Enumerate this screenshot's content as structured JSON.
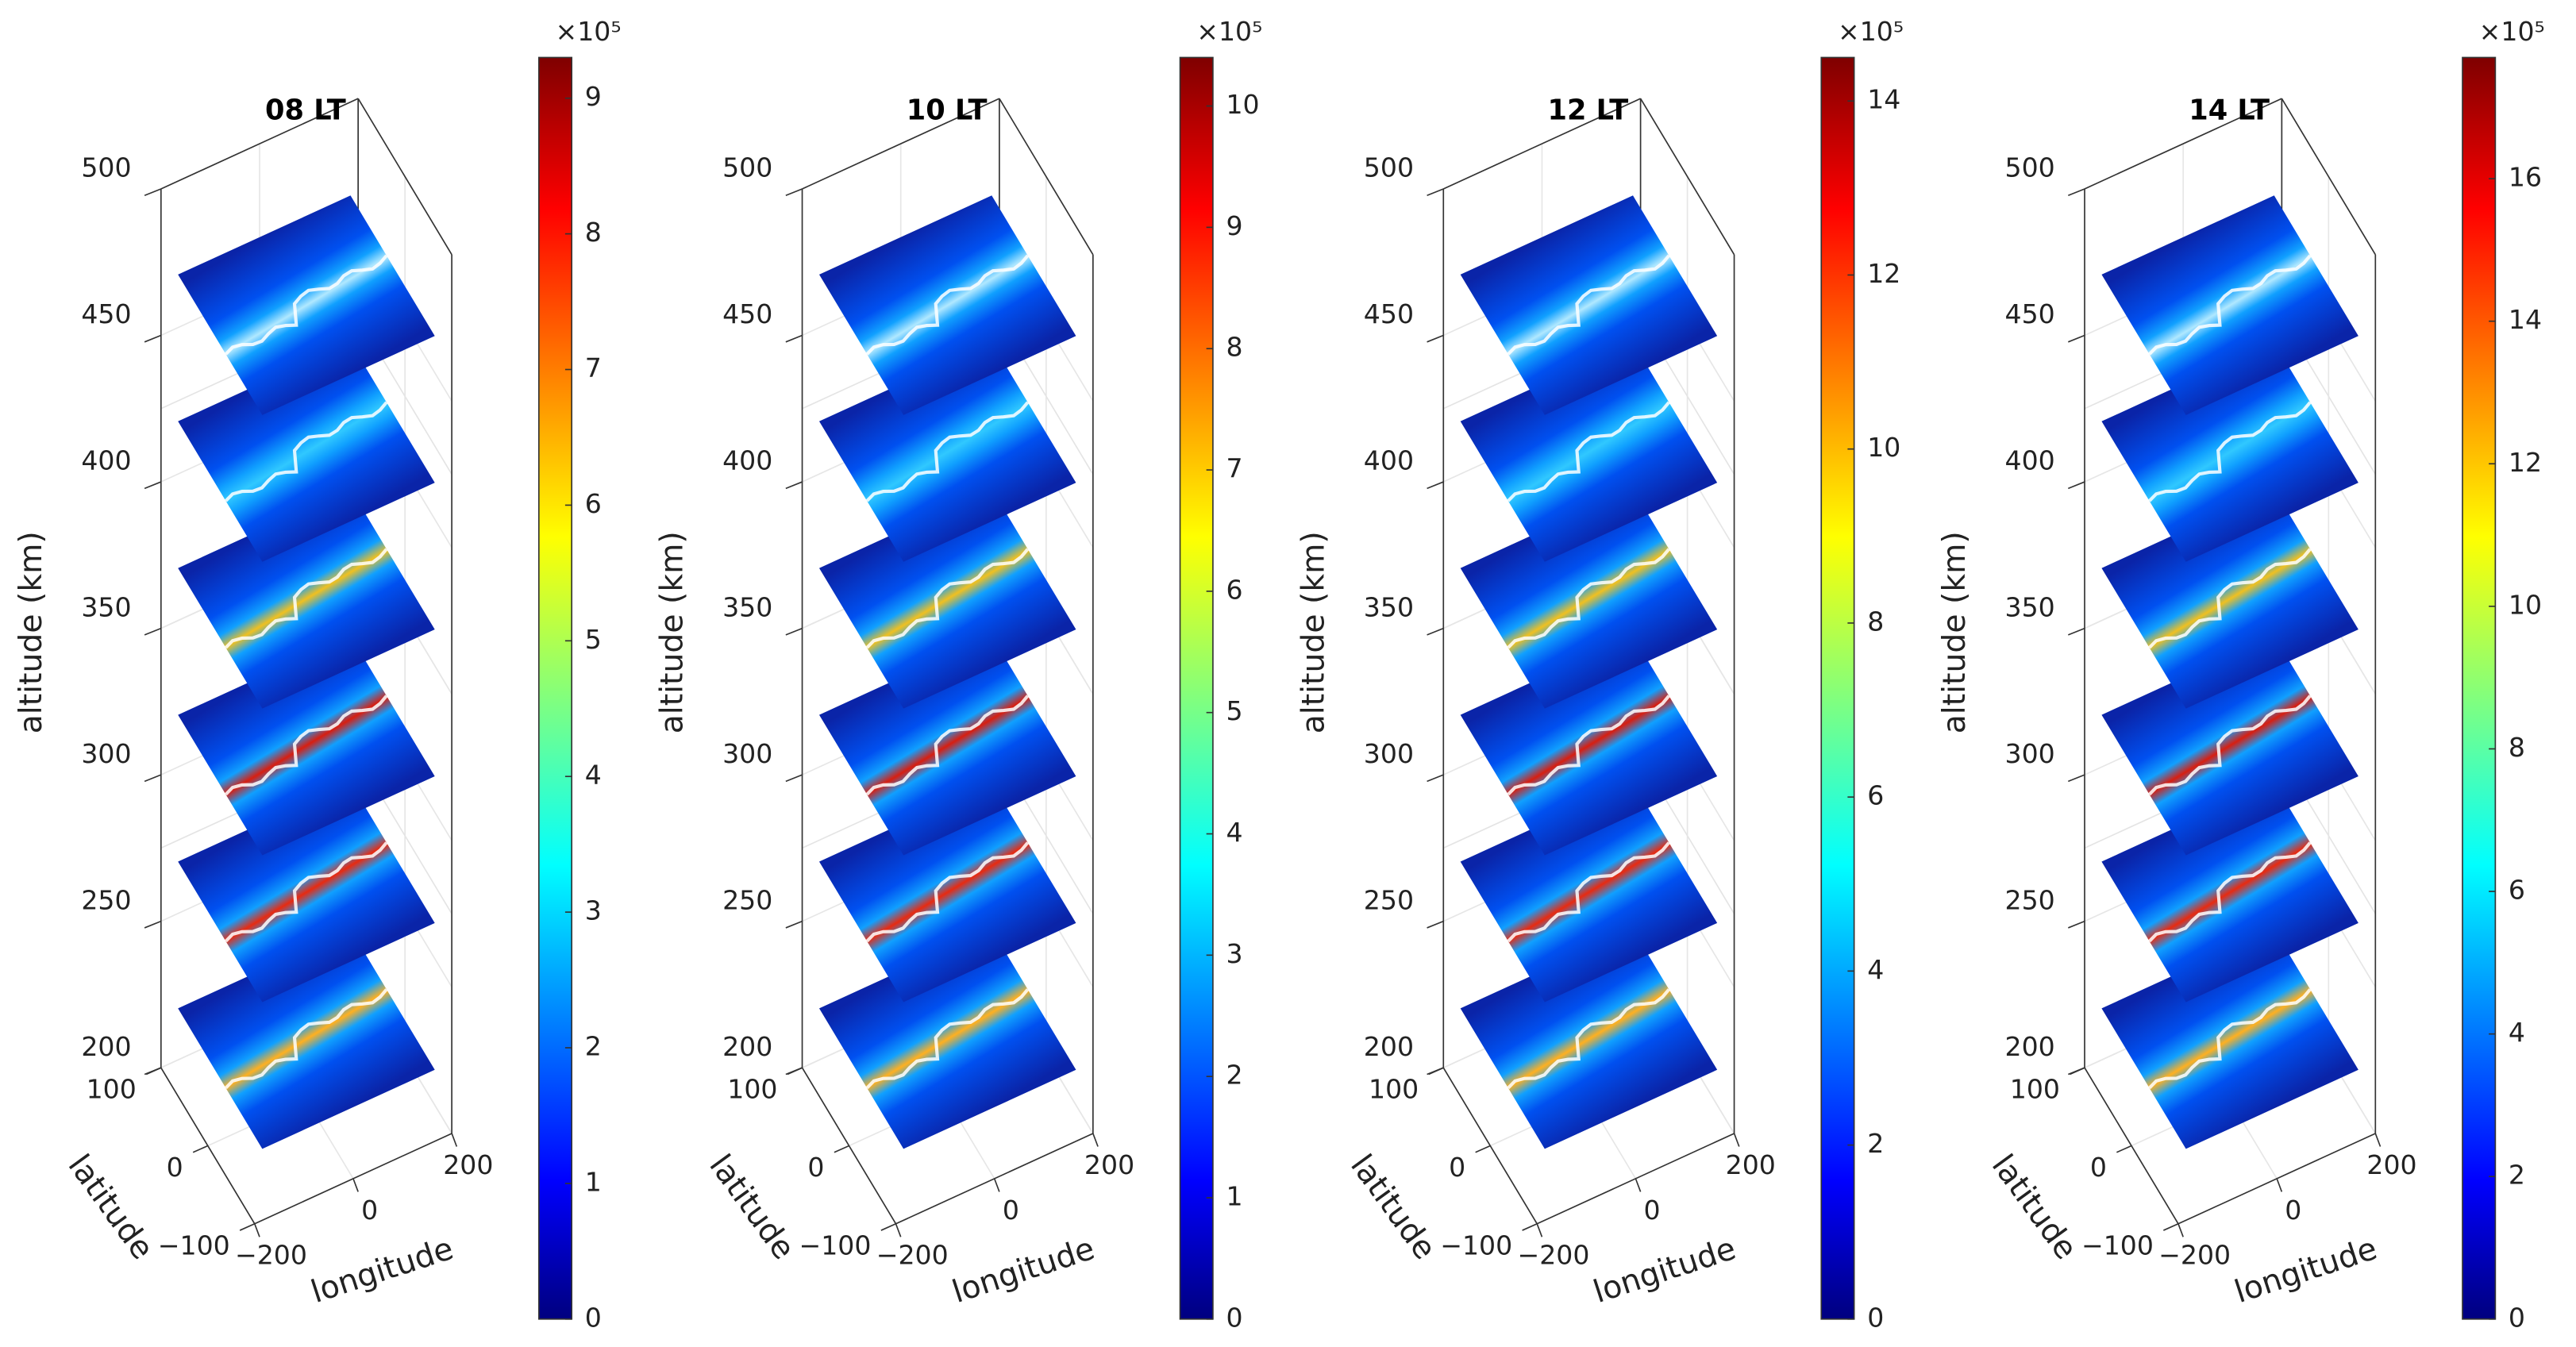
{
  "chart_data": [
    {
      "type": "slice3d",
      "title": "08 LT",
      "xlabel": "longitude",
      "ylabel": "latitude",
      "zlabel": "altitude (km)",
      "xlim": [
        -200,
        200
      ],
      "xticks": [
        {
          "value": -200,
          "label": "−200"
        },
        0,
        200
      ],
      "ylim": [
        -100,
        100
      ],
      "yticks": [
        {
          "value": -100,
          "label": "−100"
        },
        0,
        100
      ],
      "zlim": [
        200,
        500
      ],
      "zticks": [
        200,
        250,
        300,
        350,
        400,
        450,
        500
      ],
      "colorbar": {
        "colormap": "jet",
        "clim": [
          0,
          9.3
        ],
        "ticks": [
          0,
          1,
          2,
          3,
          4,
          5,
          6,
          7,
          8,
          9
        ],
        "scale_label": "×10⁵"
      }
    },
    {
      "type": "slice3d",
      "title": "10 LT",
      "xlabel": "longitude",
      "ylabel": "latitude",
      "zlabel": "altitude (km)",
      "xlim": [
        -200,
        200
      ],
      "xticks": [
        {
          "value": -200,
          "label": "−200"
        },
        0,
        200
      ],
      "ylim": [
        -100,
        100
      ],
      "yticks": [
        {
          "value": -100,
          "label": "−100"
        },
        0,
        100
      ],
      "zlim": [
        200,
        500
      ],
      "zticks": [
        200,
        250,
        300,
        350,
        400,
        450,
        500
      ],
      "colorbar": {
        "colormap": "jet",
        "clim": [
          0,
          10.4
        ],
        "ticks": [
          0,
          1,
          2,
          3,
          4,
          5,
          6,
          7,
          8,
          9,
          10
        ],
        "scale_label": "×10⁵"
      }
    },
    {
      "type": "slice3d",
      "title": "12 LT",
      "xlabel": "longitude",
      "ylabel": "latitude",
      "zlabel": "altitude (km)",
      "xlim": [
        -200,
        200
      ],
      "xticks": [
        {
          "value": -200,
          "label": "−200"
        },
        0,
        200
      ],
      "ylim": [
        -100,
        100
      ],
      "yticks": [
        {
          "value": -100,
          "label": "−100"
        },
        0,
        100
      ],
      "zlim": [
        200,
        500
      ],
      "zticks": [
        200,
        250,
        300,
        350,
        400,
        450,
        500
      ],
      "colorbar": {
        "colormap": "jet",
        "clim": [
          0,
          14.5
        ],
        "ticks": [
          0,
          2,
          4,
          6,
          8,
          10,
          12,
          14
        ],
        "scale_label": "×10⁵"
      }
    },
    {
      "type": "slice3d",
      "title": "14 LT",
      "xlabel": "longitude",
      "ylabel": "latitude",
      "zlabel": "altitude (km)",
      "xlim": [
        -200,
        200
      ],
      "xticks": [
        {
          "value": -200,
          "label": "−200"
        },
        0,
        200
      ],
      "ylim": [
        -100,
        100
      ],
      "yticks": [
        {
          "value": -100,
          "label": "−100"
        },
        0,
        100
      ],
      "zlim": [
        200,
        500
      ],
      "zticks": [
        200,
        250,
        300,
        350,
        400,
        450,
        500
      ],
      "colorbar": {
        "colormap": "jet",
        "clim": [
          0,
          17.7
        ],
        "ticks": [
          0,
          2,
          4,
          6,
          8,
          10,
          12,
          14,
          16
        ],
        "scale_label": "×10⁵"
      }
    }
  ]
}
